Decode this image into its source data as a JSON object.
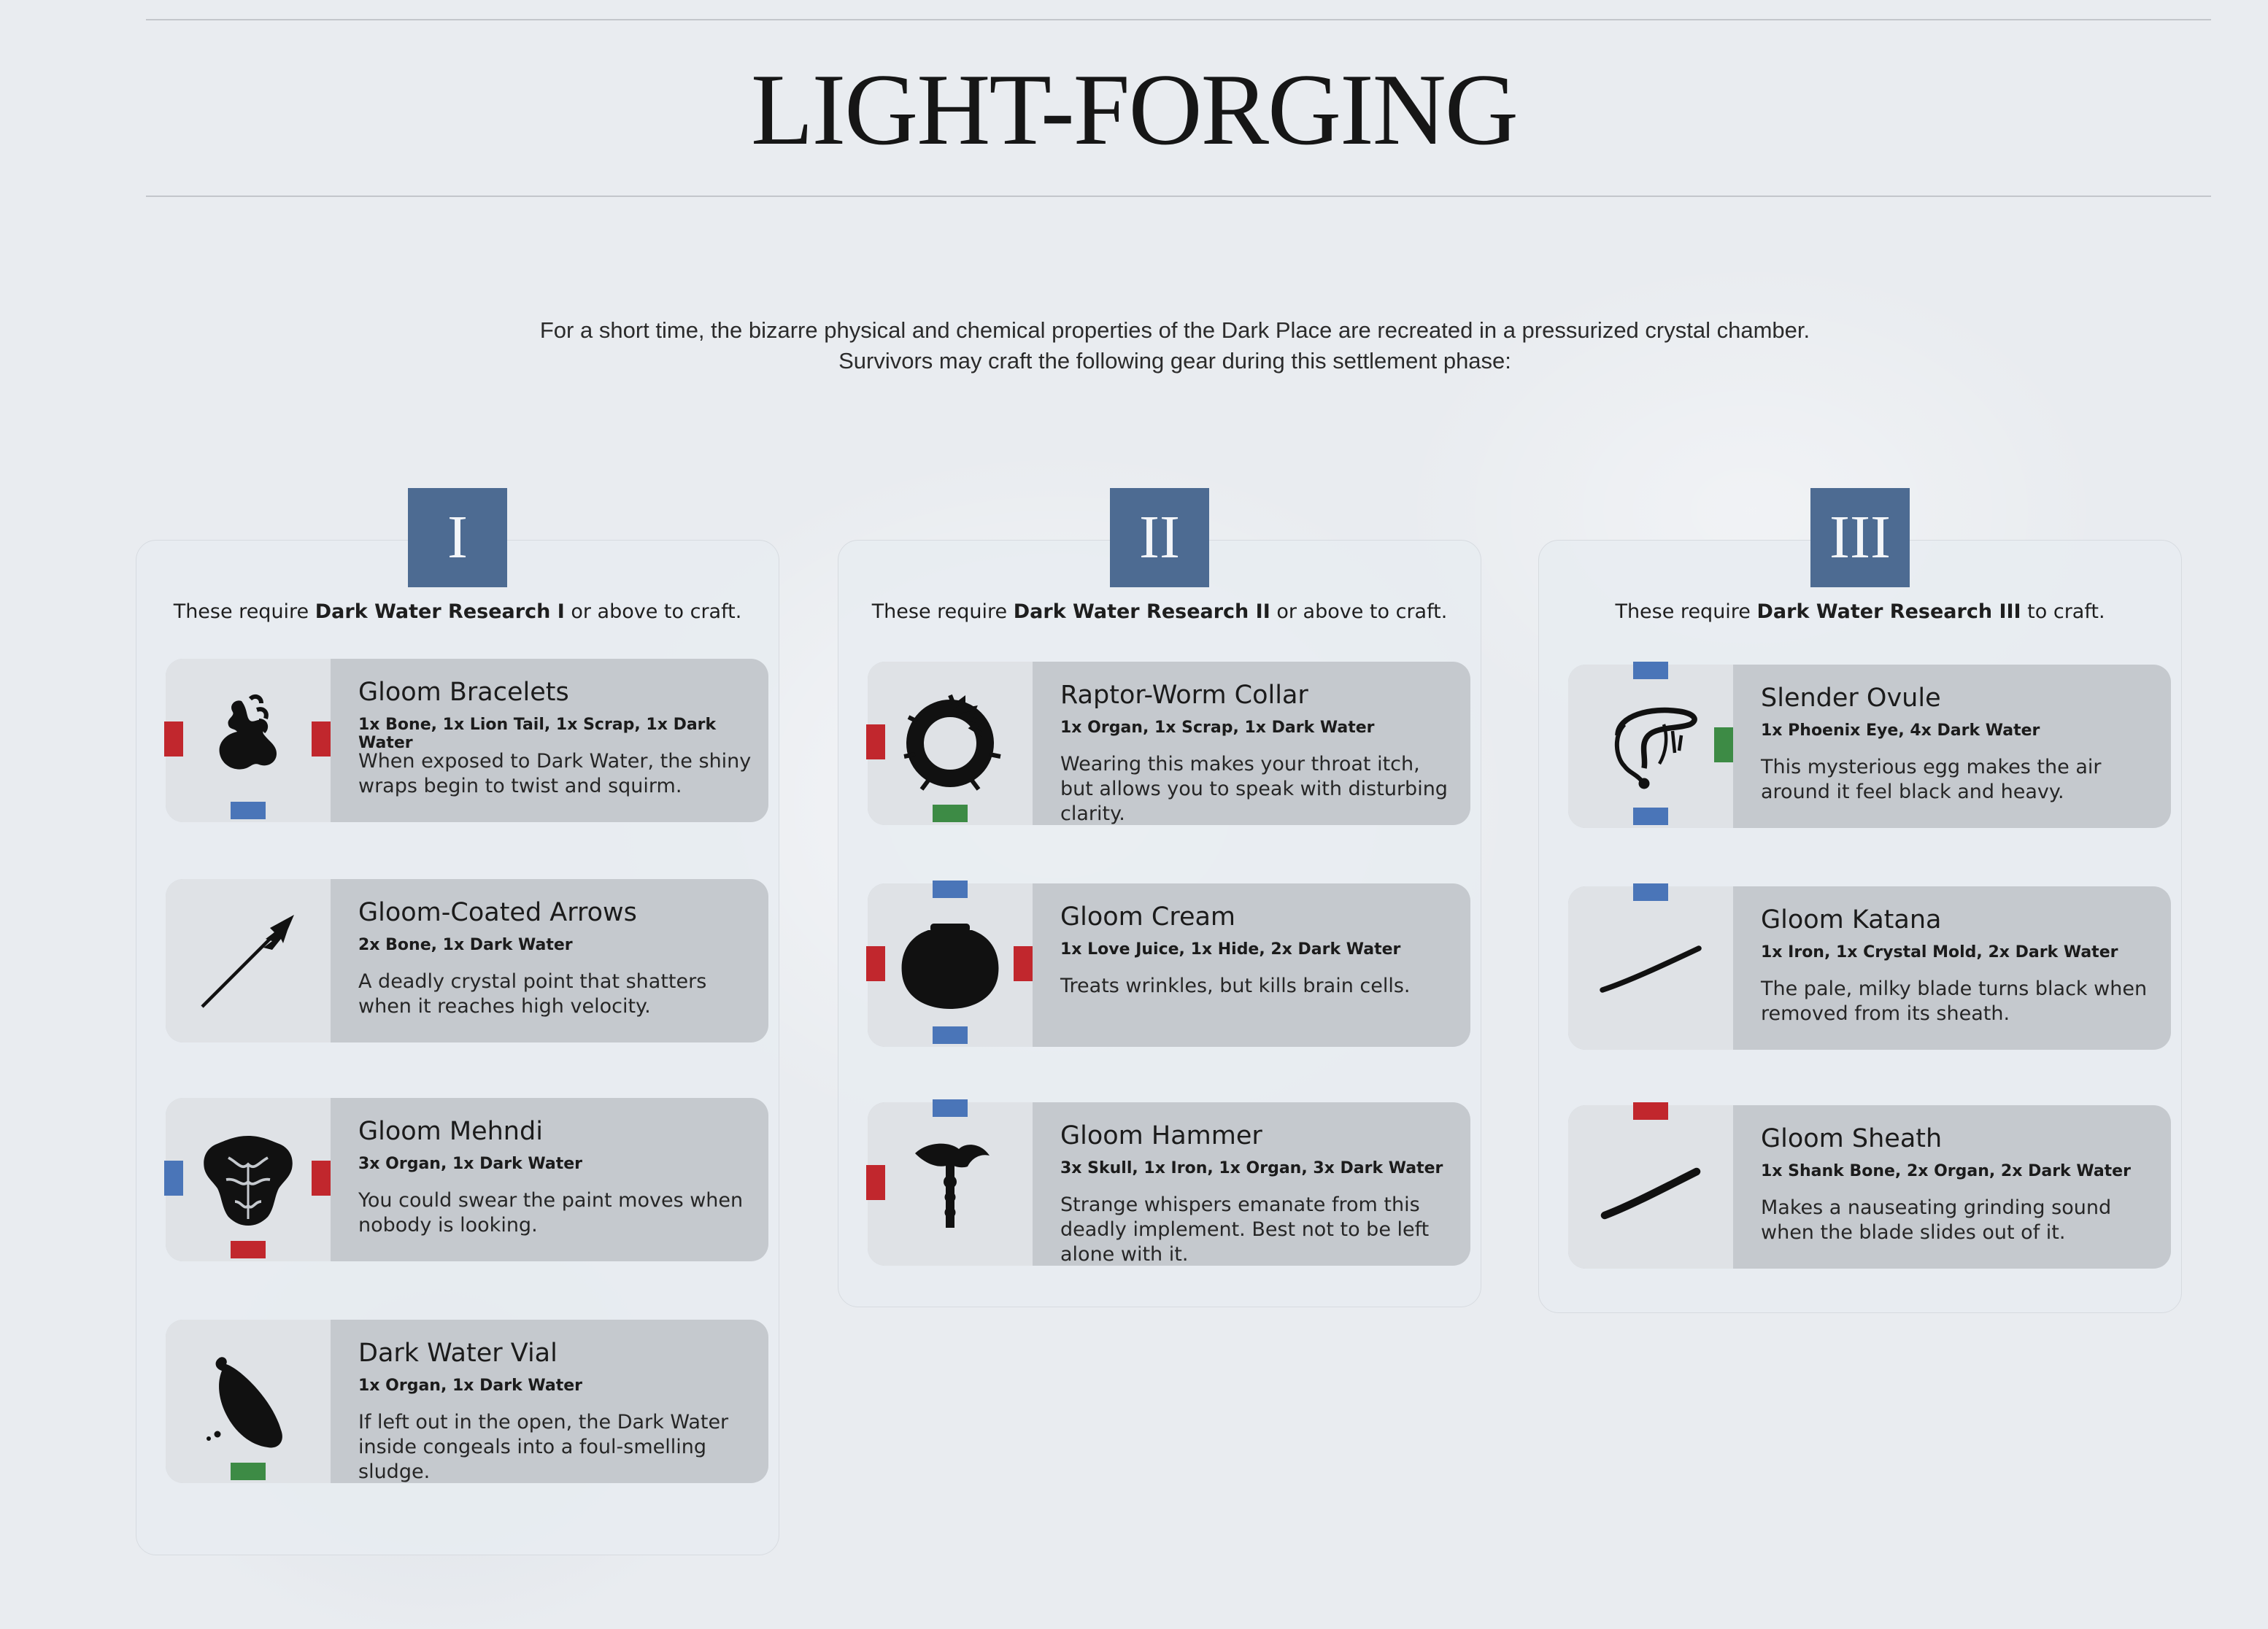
{
  "title": "LIGHT-FORGING",
  "intro": {
    "line1": "For a short time, the bizarre physical and chemical properties of the Dark Place are recreated in a pressurized crystal chamber.",
    "line2": "Survivors may craft the following gear during this settlement phase:"
  },
  "colors": {
    "red": "#c1272d",
    "blue": "#4a75b8",
    "green": "#3d8b45",
    "tier_badge": "#4d6b92"
  },
  "tiers": [
    {
      "numeral": "I",
      "req_prefix": "These require ",
      "req_bold": "Dark Water Research I",
      "req_suffix": " or above to craft.",
      "items": [
        {
          "name": "Gloom Bracelets",
          "recipe": "1x Bone, 1x Lion Tail, 1x Scrap, 1x Dark Water",
          "desc": "When exposed to Dark Water, the shiny wraps begin to twist and squirm.",
          "icon": "bracelets-icon",
          "affinities": [
            "left:red",
            "right:red",
            "bottom:blue"
          ]
        },
        {
          "name": "Gloom-Coated Arrows",
          "recipe": "2x Bone, 1x Dark Water",
          "desc": "A deadly crystal point that shatters when it reaches high velocity.",
          "icon": "arrow-icon",
          "affinities": []
        },
        {
          "name": "Gloom Mehndi",
          "recipe": "3x Organ, 1x Dark Water",
          "desc": "You could swear the paint moves when nobody is looking.",
          "icon": "mehndi-torso-icon",
          "affinities": [
            "left:blue",
            "right:red",
            "bottom:red"
          ]
        },
        {
          "name": "Dark Water Vial",
          "recipe": "1x Organ, 1x Dark Water",
          "desc": "If left out in the open, the Dark Water inside congeals into a foul-smelling sludge.",
          "icon": "vial-icon",
          "affinities": [
            "bottom:green"
          ]
        }
      ]
    },
    {
      "numeral": "II",
      "req_prefix": "These require ",
      "req_bold": "Dark Water Research II",
      "req_suffix": " or above to craft.",
      "items": [
        {
          "name": "Raptor-Worm Collar",
          "recipe": "1x Organ, 1x Scrap, 1x Dark Water",
          "desc": "Wearing this makes your throat itch, but allows you to speak with disturbing clarity.",
          "icon": "collar-icon",
          "affinities": [
            "left:red",
            "bottom:green"
          ]
        },
        {
          "name": "Gloom Cream",
          "recipe": "1x Love Juice, 1x Hide, 2x Dark Water",
          "desc": "Treats wrinkles, but kills brain cells.",
          "icon": "cream-pot-icon",
          "affinities": [
            "top:blue",
            "left:red",
            "right:red",
            "bottom:blue"
          ]
        },
        {
          "name": "Gloom Hammer",
          "recipe": "3x Skull, 1x Iron, 1x Organ, 3x Dark Water",
          "desc": "Strange whispers emanate from this deadly implement. Best not to be left alone with it.",
          "icon": "hammer-icon",
          "affinities": [
            "top:blue",
            "left:red"
          ]
        }
      ]
    },
    {
      "numeral": "III",
      "req_prefix": "These require ",
      "req_bold": "Dark Water Research III",
      "req_suffix": " to craft.",
      "items": [
        {
          "name": "Slender Ovule",
          "recipe": "1x Phoenix Eye, 4x Dark Water",
          "desc": "This mysterious egg makes the air around it feel black and heavy.",
          "icon": "ovule-icon",
          "affinities": [
            "top:blue",
            "right:green",
            "bottom:blue"
          ]
        },
        {
          "name": "Gloom Katana",
          "recipe": "1x Iron, 1x Crystal Mold, 2x Dark Water",
          "desc": "The pale, milky blade turns black when removed from its sheath.",
          "icon": "katana-icon",
          "affinities": [
            "top:blue"
          ]
        },
        {
          "name": "Gloom Sheath",
          "recipe": "1x Shank Bone, 2x Organ, 2x Dark Water",
          "desc": "Makes a nauseating grinding sound when the blade slides out of it.",
          "icon": "sheath-icon",
          "affinities": [
            "top:red"
          ]
        }
      ]
    }
  ]
}
